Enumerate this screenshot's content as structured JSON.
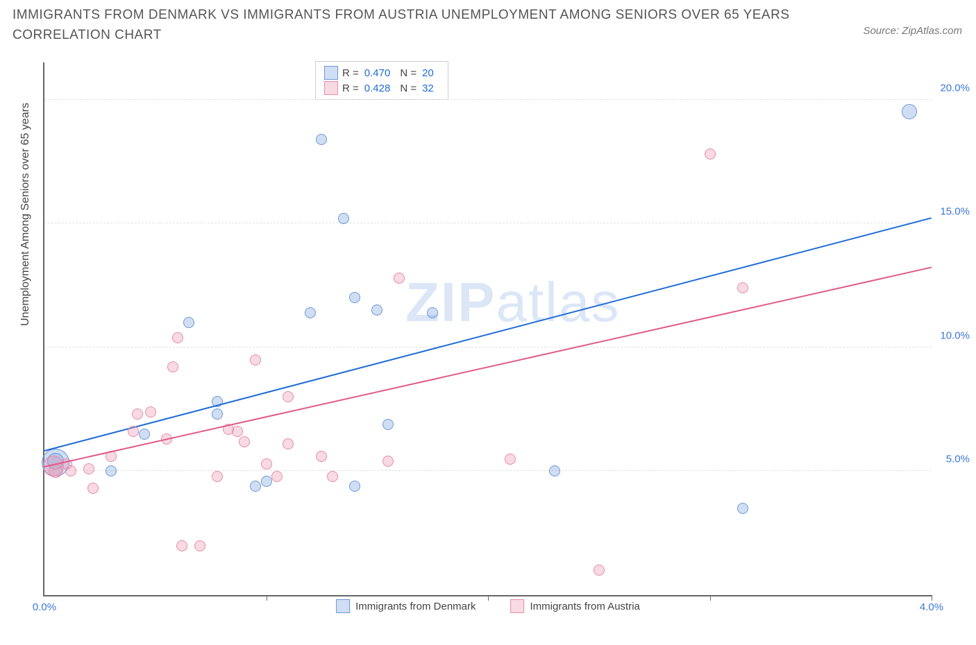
{
  "title": "IMMIGRANTS FROM DENMARK VS IMMIGRANTS FROM AUSTRIA UNEMPLOYMENT AMONG SENIORS OVER 65 YEARS CORRELATION CHART",
  "source": "Source: ZipAtlas.com",
  "ylabel": "Unemployment Among Seniors over 65 years",
  "watermark_bold": "ZIP",
  "watermark_rest": "atlas",
  "chart": {
    "type": "scatter",
    "xlim": [
      0.0,
      4.0
    ],
    "ylim": [
      0.0,
      21.5
    ],
    "x_ticks": [
      0.0,
      1.0,
      2.0,
      3.0,
      4.0
    ],
    "x_tick_labels": [
      "0.0%",
      "",
      "",
      "",
      "4.0%"
    ],
    "y_ticks": [
      5.0,
      10.0,
      15.0,
      20.0
    ],
    "y_tick_labels": [
      "5.0%",
      "10.0%",
      "15.0%",
      "20.0%"
    ],
    "grid_color": "#e0e0e0",
    "axis_color": "#666666",
    "tick_label_color": "#3b78d8",
    "background_color": "#ffffff",
    "series": [
      {
        "name": "Immigrants from Denmark",
        "fill": "rgba(120,160,220,0.35)",
        "stroke": "#6a98d8",
        "line_color": "#1e6bd6",
        "R": "0.470",
        "N": "20",
        "trend": {
          "x1": 0.0,
          "y1": 5.8,
          "x2": 4.0,
          "y2": 15.2
        },
        "points": [
          {
            "x": 0.05,
            "y": 5.35,
            "r": 20
          },
          {
            "x": 0.05,
            "y": 5.4,
            "r": 12
          },
          {
            "x": 0.3,
            "y": 5.0,
            "r": 8
          },
          {
            "x": 0.45,
            "y": 6.5,
            "r": 8
          },
          {
            "x": 1.0,
            "y": 4.6,
            "r": 8
          },
          {
            "x": 0.95,
            "y": 4.4,
            "r": 8
          },
          {
            "x": 0.65,
            "y": 11.0,
            "r": 8
          },
          {
            "x": 0.78,
            "y": 7.8,
            "r": 8
          },
          {
            "x": 1.2,
            "y": 11.4,
            "r": 8
          },
          {
            "x": 1.25,
            "y": 18.4,
            "r": 8
          },
          {
            "x": 1.35,
            "y": 15.2,
            "r": 8
          },
          {
            "x": 1.4,
            "y": 4.4,
            "r": 8
          },
          {
            "x": 1.4,
            "y": 12.0,
            "r": 8
          },
          {
            "x": 1.5,
            "y": 11.5,
            "r": 8
          },
          {
            "x": 1.55,
            "y": 6.9,
            "r": 8
          },
          {
            "x": 1.75,
            "y": 11.4,
            "r": 8
          },
          {
            "x": 2.3,
            "y": 5.0,
            "r": 8
          },
          {
            "x": 3.15,
            "y": 3.5,
            "r": 8
          },
          {
            "x": 3.9,
            "y": 19.5,
            "r": 11
          },
          {
            "x": 0.78,
            "y": 7.3,
            "r": 8
          }
        ]
      },
      {
        "name": "Immigrants from Austria",
        "fill": "rgba(235,150,175,0.35)",
        "stroke": "#e78bab",
        "line_color": "#e05a88",
        "R": "0.428",
        "N": "32",
        "trend": {
          "x1": 0.0,
          "y1": 5.15,
          "x2": 4.0,
          "y2": 13.2
        },
        "points": [
          {
            "x": 0.04,
            "y": 5.2,
            "r": 15
          },
          {
            "x": 0.05,
            "y": 5.0,
            "r": 10
          },
          {
            "x": 0.12,
            "y": 5.0,
            "r": 8
          },
          {
            "x": 0.1,
            "y": 5.3,
            "r": 8
          },
          {
            "x": 0.2,
            "y": 5.1,
            "r": 8
          },
          {
            "x": 0.22,
            "y": 4.3,
            "r": 8
          },
          {
            "x": 0.3,
            "y": 5.6,
            "r": 8
          },
          {
            "x": 0.4,
            "y": 6.6,
            "r": 8
          },
          {
            "x": 0.42,
            "y": 7.3,
            "r": 8
          },
          {
            "x": 0.48,
            "y": 7.4,
            "r": 8
          },
          {
            "x": 0.55,
            "y": 6.3,
            "r": 8
          },
          {
            "x": 0.58,
            "y": 9.2,
            "r": 8
          },
          {
            "x": 0.6,
            "y": 10.4,
            "r": 8
          },
          {
            "x": 0.62,
            "y": 2.0,
            "r": 8
          },
          {
            "x": 0.7,
            "y": 2.0,
            "r": 8
          },
          {
            "x": 0.78,
            "y": 4.8,
            "r": 8
          },
          {
            "x": 0.83,
            "y": 6.7,
            "r": 8
          },
          {
            "x": 0.87,
            "y": 6.6,
            "r": 8
          },
          {
            "x": 0.9,
            "y": 6.2,
            "r": 8
          },
          {
            "x": 0.95,
            "y": 9.5,
            "r": 8
          },
          {
            "x": 1.05,
            "y": 4.8,
            "r": 8
          },
          {
            "x": 1.1,
            "y": 8.0,
            "r": 8
          },
          {
            "x": 1.1,
            "y": 6.1,
            "r": 8
          },
          {
            "x": 1.3,
            "y": 4.8,
            "r": 8
          },
          {
            "x": 1.25,
            "y": 5.6,
            "r": 8
          },
          {
            "x": 1.55,
            "y": 5.4,
            "r": 8
          },
          {
            "x": 1.6,
            "y": 12.8,
            "r": 8
          },
          {
            "x": 2.1,
            "y": 5.5,
            "r": 8
          },
          {
            "x": 2.5,
            "y": 1.0,
            "r": 8
          },
          {
            "x": 3.0,
            "y": 17.8,
            "r": 8
          },
          {
            "x": 3.15,
            "y": 12.4,
            "r": 8
          },
          {
            "x": 1.0,
            "y": 5.3,
            "r": 8
          }
        ]
      }
    ]
  },
  "legend_stats": {
    "R_label": "R =",
    "N_label": "N ="
  },
  "bottom_legend": [
    {
      "label": "Immigrants from Denmark",
      "fill": "rgba(120,160,220,0.35)",
      "stroke": "#6a98d8"
    },
    {
      "label": "Immigrants from Austria",
      "fill": "rgba(235,150,175,0.35)",
      "stroke": "#e78bab"
    }
  ]
}
